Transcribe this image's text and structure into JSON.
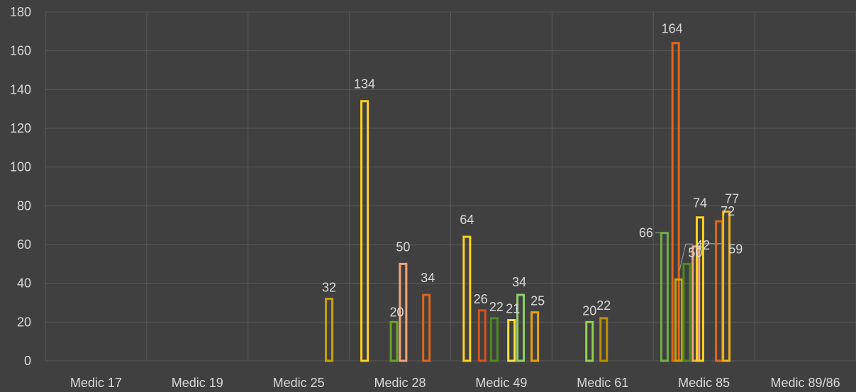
{
  "chart_data": {
    "type": "bar",
    "title": "",
    "xlabel": "",
    "ylabel": "",
    "ylim": [
      0,
      180
    ],
    "yticks": [
      0,
      20,
      40,
      60,
      80,
      100,
      120,
      140,
      160,
      180
    ],
    "grid": true,
    "legend": "none",
    "categories": [
      "Medic 17",
      "Medic 19",
      "Medic 25",
      "Medic 28",
      "Medic 49",
      "Medic 61",
      "Medic 85",
      "Medic 89/86"
    ],
    "bars": [
      {
        "category": "Medic 25",
        "value": 32,
        "label": "32",
        "color": "#c9a20a"
      },
      {
        "category": "Medic 28",
        "value": 134,
        "label": "134",
        "color": "#ffd21f"
      },
      {
        "category": "Medic 28",
        "value": 20,
        "label": "20",
        "color": "#6aa32a"
      },
      {
        "category": "Medic 28",
        "value": 50,
        "label": "50",
        "color": "#f4a57a"
      },
      {
        "category": "Medic 28",
        "value": 34,
        "label": "34",
        "color": "#e2661c"
      },
      {
        "category": "Medic 49",
        "value": 64,
        "label": "64",
        "color": "#ffd21f"
      },
      {
        "category": "Medic 49",
        "value": 26,
        "label": "26",
        "color": "#d9531b"
      },
      {
        "category": "Medic 49",
        "value": 22,
        "label": "22",
        "color": "#4e8a20"
      },
      {
        "category": "Medic 49",
        "value": 21,
        "label": "21",
        "color": "#ffe14a"
      },
      {
        "category": "Medic 49",
        "value": 34,
        "label": "34",
        "color": "#8fd06a"
      },
      {
        "category": "Medic 49",
        "value": 25,
        "label": "25",
        "color": "#e7a116"
      },
      {
        "category": "Medic 61",
        "value": 20,
        "label": "20",
        "color": "#92d050"
      },
      {
        "category": "Medic 61",
        "value": 22,
        "label": "22",
        "color": "#bf8f00"
      },
      {
        "category": "Medic 85",
        "value": 66,
        "label": "66",
        "color": "#70ad47"
      },
      {
        "category": "Medic 85",
        "value": 164,
        "label": "164",
        "color": "#e2661c"
      },
      {
        "category": "Medic 85",
        "value": 42,
        "label": "42",
        "color": "#c9a20a"
      },
      {
        "category": "Medic 85",
        "value": 50,
        "label": "50",
        "color": "#4e8a20"
      },
      {
        "category": "Medic 85",
        "value": 59,
        "label": "59",
        "color": "#f4a57a"
      },
      {
        "category": "Medic 85",
        "value": 74,
        "label": "74",
        "color": "#ffd21f"
      },
      {
        "category": "Medic 85",
        "value": 72,
        "label": "72",
        "color": "#e2661c"
      },
      {
        "category": "Medic 85",
        "value": 77,
        "label": "77",
        "color": "#f2b01e"
      }
    ]
  }
}
